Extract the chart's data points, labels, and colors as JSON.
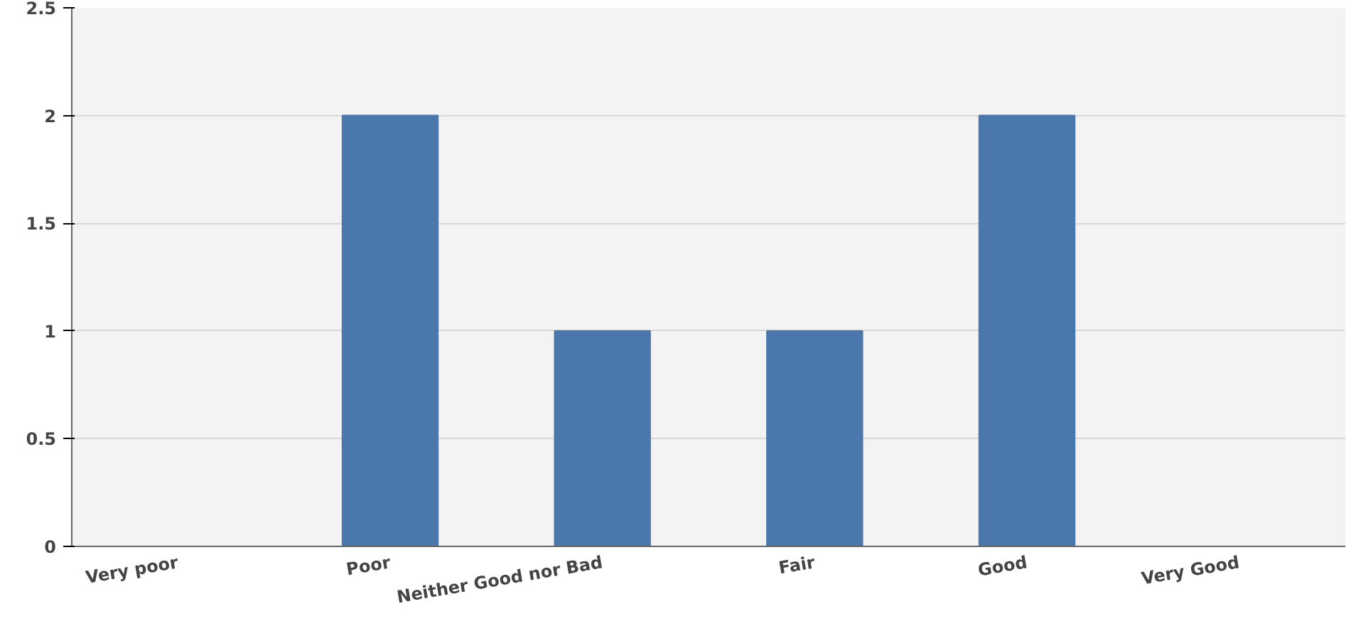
{
  "chart_data": {
    "type": "bar",
    "categories": [
      "Very poor",
      "Poor",
      "Neither Good nor Bad",
      "Fair",
      "Good",
      "Very Good"
    ],
    "values": [
      0,
      2,
      1,
      1,
      2,
      0
    ],
    "color": "#4a78ad",
    "ylim": [
      0,
      2.5
    ],
    "yticks": [
      0,
      0.5,
      1,
      1.5,
      2,
      2.5
    ],
    "grid": "y"
  }
}
